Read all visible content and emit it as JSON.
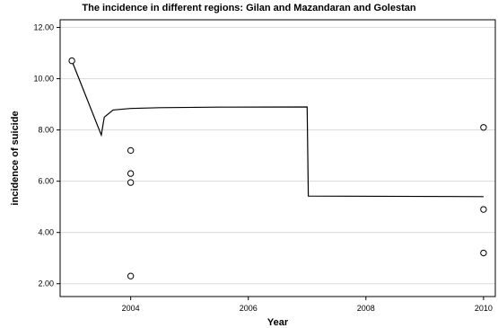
{
  "chart_data": {
    "type": "scatter",
    "title": "The incidence in different regions: Gilan and Mazandaran and Golestan",
    "xlabel": "Year",
    "ylabel": "incidence  of suicide",
    "xlim": [
      2002.8,
      2010.2
    ],
    "ylim": [
      1.5,
      12.3
    ],
    "x_ticks": [
      2004,
      2006,
      2008,
      2010
    ],
    "y_ticks": [
      2.0,
      4.0,
      6.0,
      8.0,
      10.0,
      12.0
    ],
    "y_tick_labels": [
      "2.00",
      "4.00",
      "6.00",
      "8.00",
      "10.00",
      "12.00"
    ],
    "grid": {
      "y": true,
      "x": false
    },
    "points": [
      {
        "x": 2003,
        "y": 10.7
      },
      {
        "x": 2004,
        "y": 7.2
      },
      {
        "x": 2004,
        "y": 6.3
      },
      {
        "x": 2004,
        "y": 5.95
      },
      {
        "x": 2004,
        "y": 2.3
      },
      {
        "x": 2010,
        "y": 8.1
      },
      {
        "x": 2010,
        "y": 4.9
      },
      {
        "x": 2010,
        "y": 3.2
      }
    ],
    "fit_line": [
      {
        "x": 2003.0,
        "y": 10.7
      },
      {
        "x": 2003.5,
        "y": 7.8
      },
      {
        "x": 2003.55,
        "y": 8.5
      },
      {
        "x": 2003.7,
        "y": 8.78
      },
      {
        "x": 2004.0,
        "y": 8.84
      },
      {
        "x": 2004.5,
        "y": 8.87
      },
      {
        "x": 2005.5,
        "y": 8.89
      },
      {
        "x": 2007.0,
        "y": 8.9
      },
      {
        "x": 2007.02,
        "y": 5.42
      },
      {
        "x": 2010.0,
        "y": 5.4
      }
    ],
    "colors": {
      "axis": "#000000",
      "grid": "#d9d9d9",
      "marker_stroke": "#000000",
      "line": "#000000"
    }
  }
}
